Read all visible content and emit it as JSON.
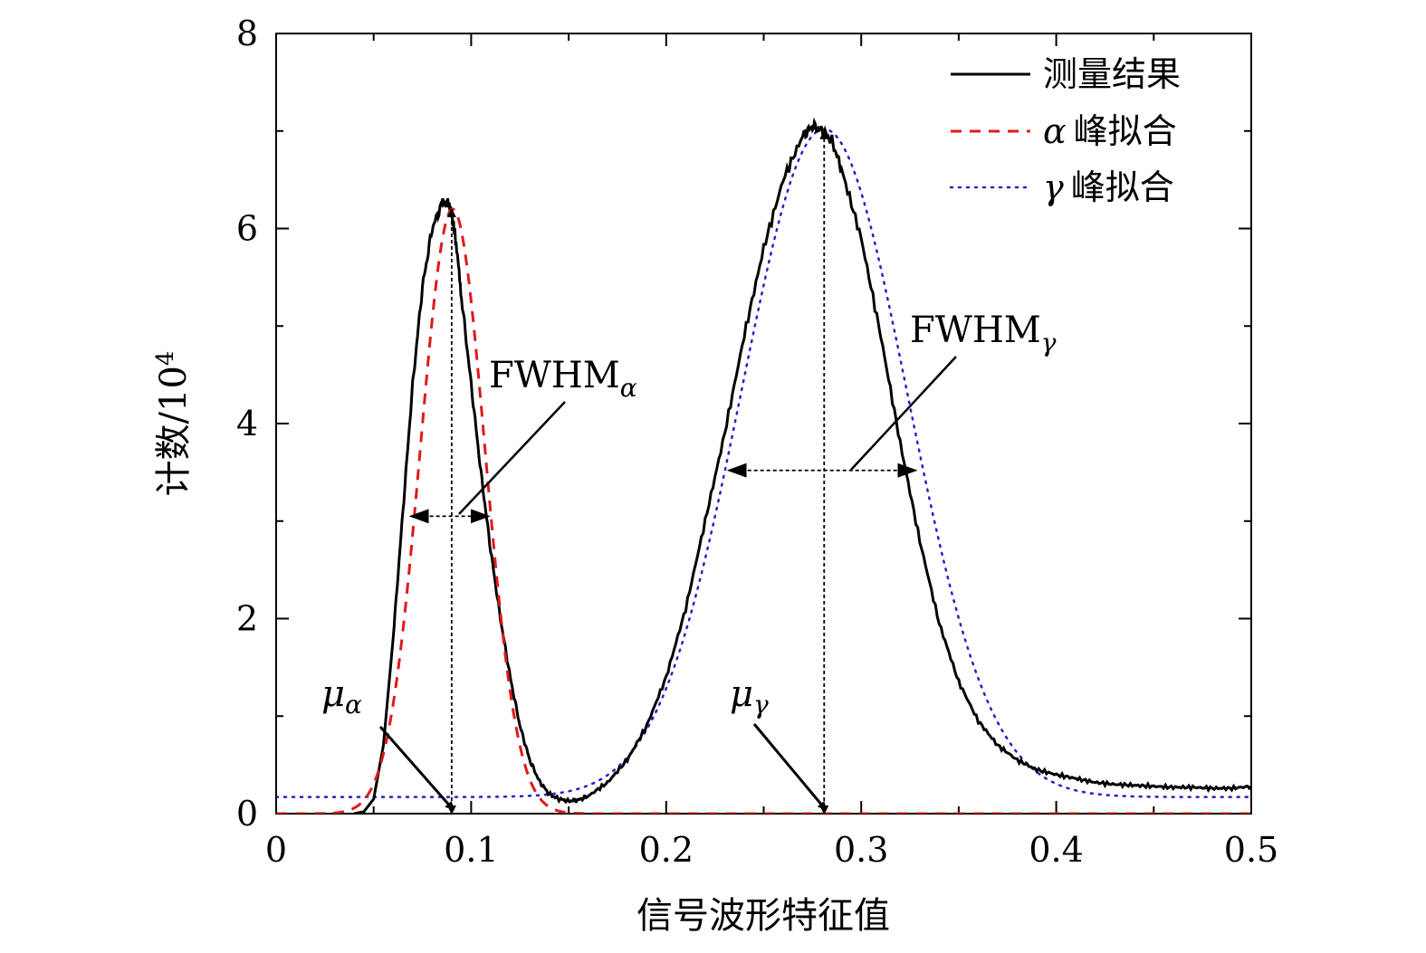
{
  "chart_data": {
    "type": "line",
    "xlabel": "信号波形特征值",
    "ylabel": "计数/10⁴",
    "xlim": [
      0,
      0.5
    ],
    "ylim": [
      0,
      8
    ],
    "x_ticks": [
      "0",
      "0.1",
      "0.2",
      "0.3",
      "0.4",
      "0.5"
    ],
    "y_ticks": [
      "0",
      "2",
      "4",
      "6",
      "8"
    ],
    "grid": false,
    "legend_position": "top-right",
    "series": [
      {
        "name": "测量结果",
        "style": "solid",
        "color": "#000000",
        "x": [
          0.04,
          0.045,
          0.05,
          0.055,
          0.06,
          0.065,
          0.07,
          0.075,
          0.08,
          0.085,
          0.088,
          0.09,
          0.092,
          0.095,
          0.1,
          0.105,
          0.11,
          0.115,
          0.12,
          0.125,
          0.13,
          0.135,
          0.14,
          0.145,
          0.15,
          0.155,
          0.16,
          0.17,
          0.18,
          0.19,
          0.2,
          0.21,
          0.22,
          0.23,
          0.24,
          0.25,
          0.26,
          0.27,
          0.275,
          0.28,
          0.285,
          0.29,
          0.3,
          0.31,
          0.32,
          0.33,
          0.34,
          0.35,
          0.36,
          0.37,
          0.38,
          0.39,
          0.4,
          0.41,
          0.42,
          0.43,
          0.44,
          0.45,
          0.46,
          0.47,
          0.48,
          0.49,
          0.5
        ],
        "y": [
          0.0,
          0.02,
          0.15,
          0.7,
          1.8,
          3.1,
          4.4,
          5.4,
          6.0,
          6.25,
          6.28,
          6.15,
          5.9,
          5.3,
          4.4,
          3.5,
          2.7,
          2.0,
          1.4,
          0.9,
          0.55,
          0.33,
          0.2,
          0.15,
          0.13,
          0.14,
          0.18,
          0.32,
          0.55,
          0.9,
          1.4,
          2.1,
          3.0,
          3.9,
          4.9,
          5.8,
          6.5,
          6.95,
          7.05,
          7.0,
          6.9,
          6.6,
          5.9,
          4.9,
          3.8,
          2.8,
          1.95,
          1.35,
          0.95,
          0.7,
          0.55,
          0.45,
          0.4,
          0.36,
          0.32,
          0.3,
          0.29,
          0.28,
          0.27,
          0.27,
          0.26,
          0.26,
          0.28
        ]
      },
      {
        "name": "α 峰拟合",
        "style": "dashed",
        "color": "#e0191c",
        "gaussian": {
          "mu": 0.0905,
          "sigma": 0.0165,
          "amplitude": 6.2,
          "baseline": 0.0
        },
        "x_range": [
          0,
          0.5
        ]
      },
      {
        "name": "γ 峰拟合",
        "style": "dotted",
        "color": "#2222cc",
        "gaussian": {
          "mu": 0.281,
          "sigma": 0.0425,
          "amplitude": 6.85,
          "baseline": 0.17
        },
        "x_range": [
          0,
          0.5
        ]
      }
    ],
    "annotations": {
      "mu_alpha": {
        "label": "μα",
        "x": 0.09,
        "y": 0
      },
      "mu_gamma": {
        "label": "μγ",
        "x": 0.281,
        "y": 0
      },
      "fwhm_alpha": {
        "label": "FWHMα",
        "y": 3.05,
        "x_from": 0.069,
        "x_to": 0.109
      },
      "fwhm_gamma": {
        "label": "FWHMγ",
        "y": 3.52,
        "x_from": 0.232,
        "x_to": 0.328
      },
      "peak_alpha_line": {
        "x": 0.09,
        "y_top": 6.2
      },
      "peak_gamma_line": {
        "x": 0.281,
        "y_top": 7.0
      }
    }
  },
  "legend": {
    "measured": "测量结果",
    "alpha_symbol": "α",
    "alpha_text": "峰拟合",
    "gamma_symbol": "γ",
    "gamma_text": "峰拟合"
  },
  "labels": {
    "fwhm": "FWHM",
    "alpha_sub": "α",
    "gamma_sub": "γ",
    "mu": "μ",
    "ylabel_main": "计数/10",
    "ylabel_exp": "4"
  }
}
